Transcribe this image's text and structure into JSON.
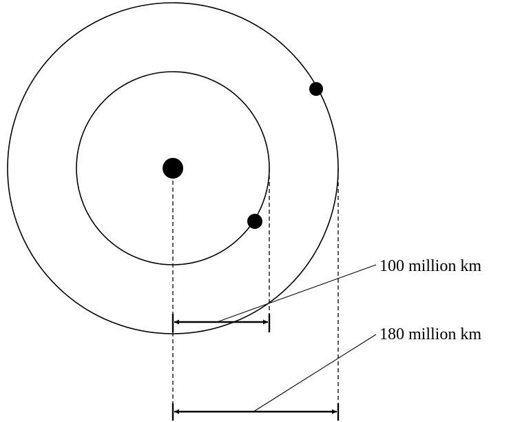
{
  "labels": {
    "inner_distance": "100 million km",
    "outer_distance": "180 million km"
  },
  "colors": {
    "ink": "#000000",
    "background": "#ffffff"
  }
}
